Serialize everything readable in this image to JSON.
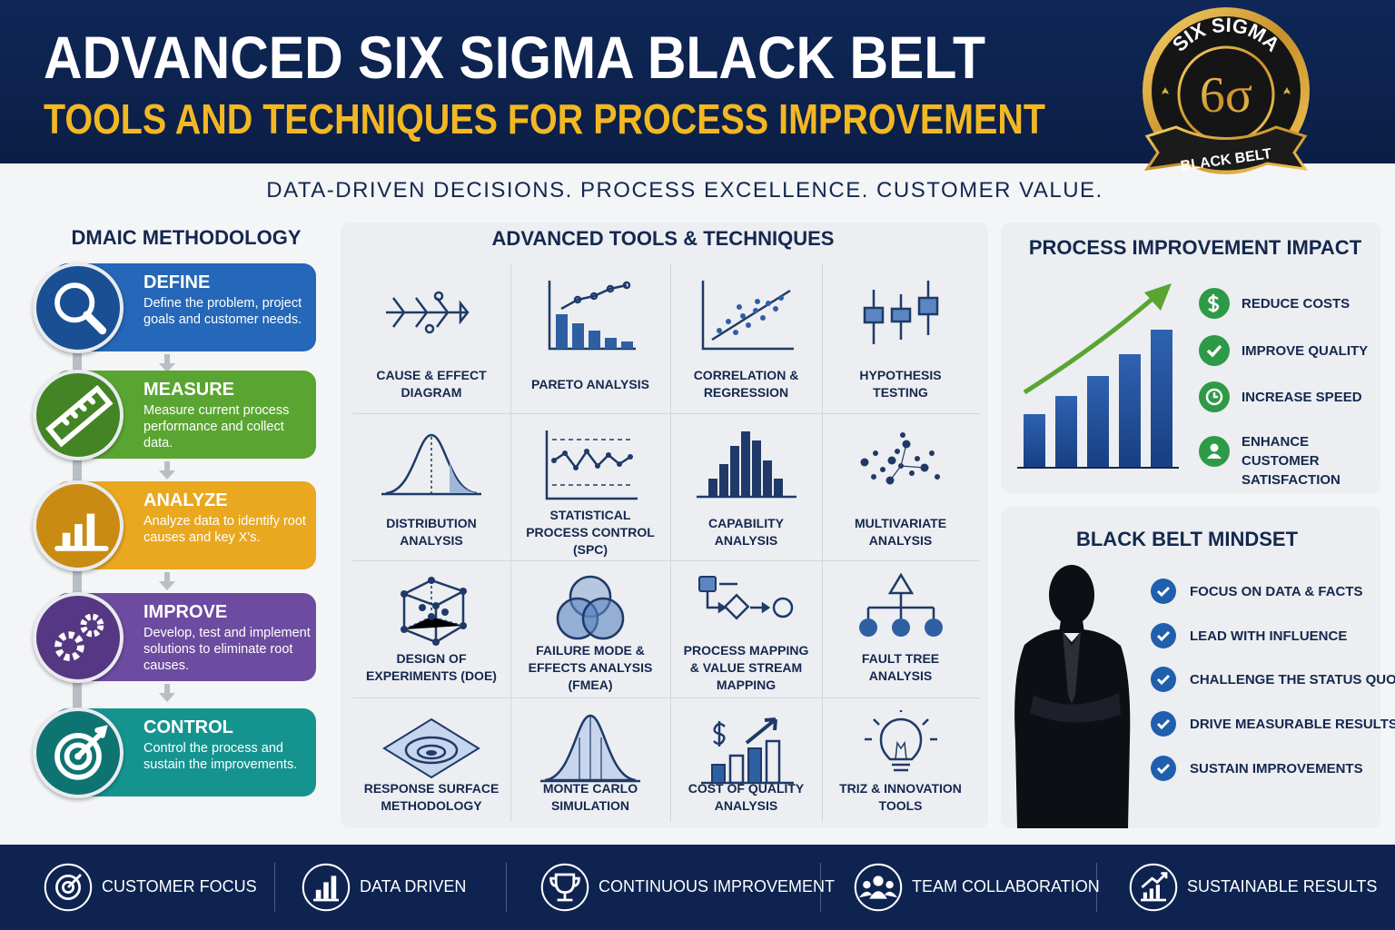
{
  "header": {
    "title": "ADVANCED SIX SIGMA BLACK BELT",
    "subtitle": "TOOLS AND TECHNIQUES FOR PROCESS IMPROVEMENT"
  },
  "badge": {
    "top": "SIX SIGMA",
    "symbol": "6σ",
    "ribbon": "BLACK BELT"
  },
  "tagline": "DATA-DRIVEN DECISIONS.  PROCESS EXCELLENCE.  CUSTOMER VALUE.",
  "dmaic": {
    "title": "DMAIC METHODOLOGY",
    "steps": [
      {
        "name": "DEFINE",
        "description": "Define the problem, project goals and customer needs."
      },
      {
        "name": "MEASURE",
        "description": "Measure current process performance and collect data."
      },
      {
        "name": "ANALYZE",
        "description": "Analyze data to identify root causes and key X's."
      },
      {
        "name": "IMPROVE",
        "description": "Develop, test and implement solutions to eliminate root causes."
      },
      {
        "name": "CONTROL",
        "description": "Control the process and sustain the improvements."
      }
    ]
  },
  "tools": {
    "title": "ADVANCED TOOLS & TECHNIQUES",
    "items": [
      "CAUSE & EFFECT DIAGRAM",
      "PARETO ANALYSIS",
      "CORRELATION & REGRESSION",
      "HYPOTHESIS TESTING",
      "DISTRIBUTION ANALYSIS",
      "STATISTICAL PROCESS CONTROL (SPC)",
      "CAPABILITY ANALYSIS",
      "MULTIVARIATE ANALYSIS",
      "DESIGN OF EXPERIMENTS (DOE)",
      "FAILURE MODE & EFFECTS ANALYSIS (FMEA)",
      "PROCESS MAPPING & VALUE STREAM MAPPING",
      "FAULT TREE ANALYSIS",
      "RESPONSE SURFACE METHODOLOGY",
      "MONTE CARLO SIMULATION",
      "COST OF QUALITY ANALYSIS",
      "TRIZ & INNOVATION TOOLS"
    ]
  },
  "impact": {
    "title": "PROCESS IMPROVEMENT IMPACT",
    "items": [
      "REDUCE COSTS",
      "IMPROVE QUALITY",
      "INCREASE SPEED",
      "ENHANCE CUSTOMER SATISFACTION"
    ]
  },
  "mindset": {
    "title": "BLACK BELT MINDSET",
    "items": [
      "FOCUS ON DATA & FACTS",
      "LEAD WITH INFLUENCE",
      "CHALLENGE THE STATUS QUO",
      "DRIVE MEASURABLE RESULTS",
      "SUSTAIN IMPROVEMENTS"
    ]
  },
  "footer": {
    "items": [
      "CUSTOMER FOCUS",
      "DATA DRIVEN",
      "CONTINUOUS IMPROVEMENT",
      "TEAM COLLABORATION",
      "SUSTAINABLE RESULTS"
    ]
  }
}
